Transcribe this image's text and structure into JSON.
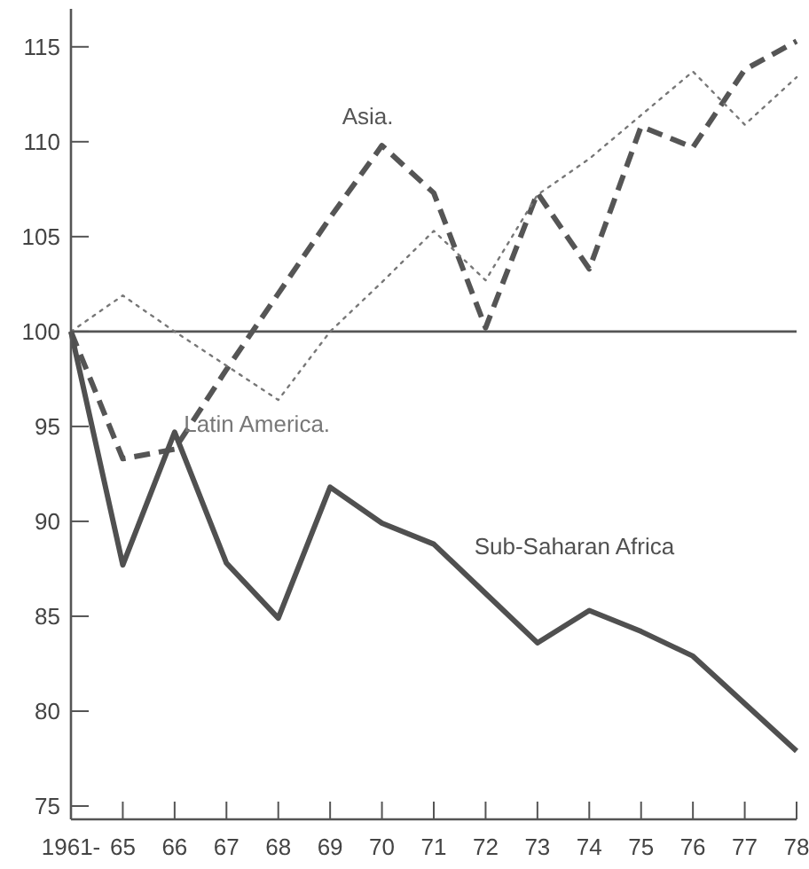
{
  "chart_data": {
    "type": "line",
    "categories": [
      "1961-",
      "65",
      "66",
      "67",
      "68",
      "69",
      "70",
      "71",
      "72",
      "73",
      "74",
      "75",
      "76",
      "77",
      "78"
    ],
    "series": [
      {
        "name": "Asia.",
        "color": "#555555",
        "line_style": "dashed",
        "values": [
          100,
          93.3,
          93.8,
          98,
          102,
          106,
          109.8,
          107.3,
          100.2,
          107.3,
          103.3,
          110.8,
          109.7,
          113.8,
          115.3
        ]
      },
      {
        "name": "Latin America.",
        "color": "#777777",
        "line_style": "dotted",
        "values": [
          100,
          101.9,
          100,
          98.2,
          96.4,
          100,
          102.6,
          105.3,
          102.7,
          107.2,
          109.1,
          111.4,
          113.7,
          110.9,
          113.4
        ]
      },
      {
        "name": "Sub-Saharan Africa",
        "color": "#505050",
        "line_style": "solid",
        "values": [
          100,
          87.7,
          94.7,
          87.8,
          84.9,
          91.8,
          89.9,
          88.8,
          86.2,
          83.6,
          85.3,
          84.2,
          82.9,
          80.4,
          77.9
        ]
      }
    ],
    "ylim": [
      74.3,
      117
    ],
    "yticks": [
      75,
      80,
      85,
      90,
      95,
      100,
      105,
      110,
      115
    ],
    "ref_lines": [
      {
        "axis": "y",
        "value": 100,
        "color": "#555555"
      }
    ],
    "grid": false,
    "marker": "none"
  }
}
